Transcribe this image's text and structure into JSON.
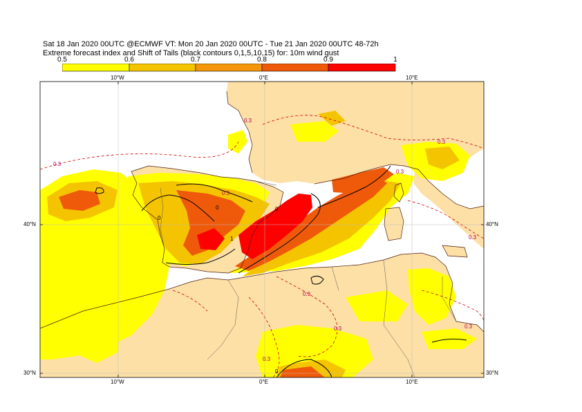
{
  "header": {
    "line1": "Sat 18 Jan 2020 00UTC @ECMWF VT: Mon 20 Jan 2020 00UTC - Tue 21 Jan 2020 00UTC  48-72h",
    "line2": "Extreme forecast index and Shift of Tails (black contours 0,1,5,10,15) for: 10m wind gust"
  },
  "colorbar": {
    "ticks": [
      "0.5",
      "0.6",
      "0.7",
      "0.8",
      "0.9",
      "1"
    ],
    "colors": [
      "#ffff00",
      "#f5c400",
      "#f5960a",
      "#ef5a0a",
      "#ff0000"
    ]
  },
  "map": {
    "land_color": "#fde0a6",
    "sea_color": "#ffffff",
    "lon_labels_top": [
      "10°W",
      "0°E",
      "10°E"
    ],
    "lon_labels_bottom": [
      "10°W",
      "0°E",
      "10°E"
    ],
    "lat_labels_left": [
      "40°N",
      "30°N"
    ],
    "lat_labels_right": [
      "40°N",
      "30°N"
    ],
    "contour_labels": [
      "0.3",
      "0.3",
      "0.3",
      "0.3",
      "0.3",
      "0.3",
      "0.3",
      "0.3",
      "0.3",
      "0.3"
    ],
    "sot_labels": [
      "0",
      "0",
      "0",
      "1",
      "0"
    ]
  }
}
